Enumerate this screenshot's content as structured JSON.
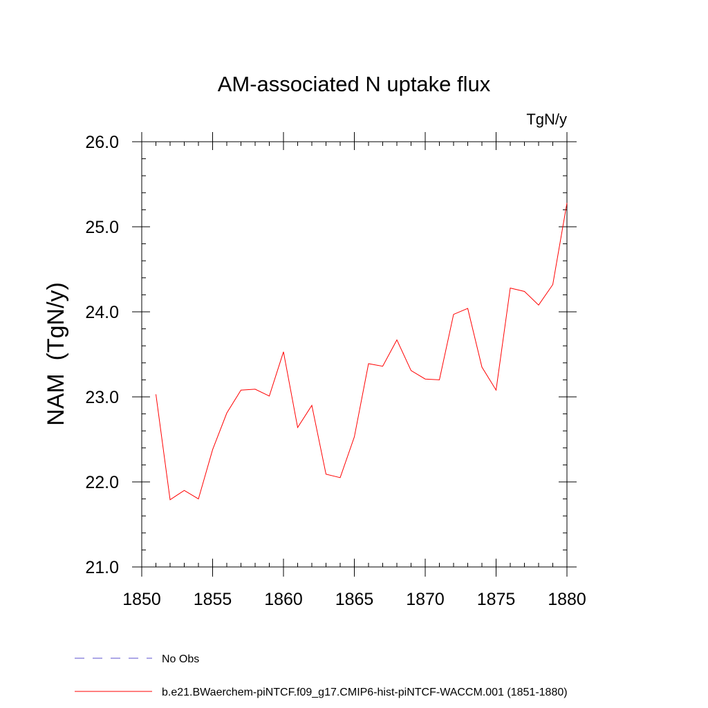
{
  "chart_data": {
    "type": "line",
    "title": "AM-associated N uptake flux",
    "units": "TgN/y",
    "ylabel": "NAM  (TgN/y)",
    "xlabel": "",
    "xlim": [
      1850,
      1880
    ],
    "ylim": [
      21.0,
      26.0
    ],
    "x_ticks": [
      1850,
      1855,
      1860,
      1865,
      1870,
      1875,
      1880
    ],
    "y_ticks": [
      "21.0",
      "22.0",
      "23.0",
      "24.0",
      "25.0",
      "26.0"
    ],
    "grid": false,
    "legend_position": "bottom-left",
    "series": [
      {
        "name": "No Obs",
        "color": "#5a4fcf",
        "style": "dashed",
        "x": [],
        "y": []
      },
      {
        "name": "b.e21.BWaerchem-piNTCF.f09_g17.CMIP6-hist-piNTCF-WACCM.001 (1851-1880)",
        "color": "#ff0000",
        "style": "solid",
        "x": [
          1851,
          1852,
          1853,
          1854,
          1855,
          1856,
          1857,
          1858,
          1859,
          1860,
          1861,
          1862,
          1863,
          1864,
          1865,
          1866,
          1867,
          1868,
          1869,
          1870,
          1871,
          1872,
          1873,
          1874,
          1875,
          1876,
          1877,
          1878,
          1879,
          1880
        ],
        "y": [
          23.03,
          21.79,
          21.9,
          21.8,
          22.38,
          22.81,
          23.08,
          23.09,
          23.01,
          23.53,
          22.64,
          22.9,
          22.09,
          22.05,
          22.53,
          23.39,
          23.36,
          23.67,
          23.31,
          23.21,
          23.2,
          23.97,
          24.04,
          23.35,
          23.08,
          24.28,
          24.24,
          24.08,
          24.32,
          25.28
        ]
      }
    ]
  }
}
